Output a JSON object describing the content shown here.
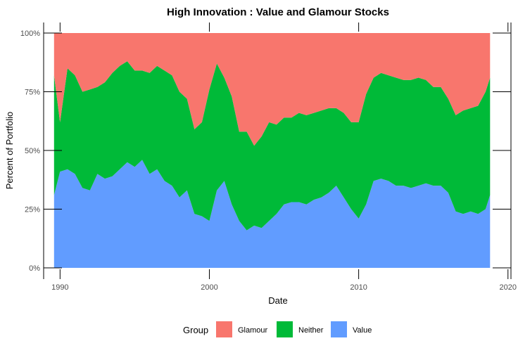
{
  "chart_data": {
    "type": "area",
    "stacking": "percent",
    "title": "High Innovation : Value and Glamour Stocks",
    "xlabel": "Date",
    "ylabel": "Percent of Portfolio",
    "xlim": [
      1988.9,
      2020.2
    ],
    "ylim": [
      0,
      100
    ],
    "x_ticks": [
      "1990",
      "2000",
      "2010",
      "2020"
    ],
    "y_ticks": [
      "0%",
      "25%",
      "50%",
      "75%",
      "100%"
    ],
    "legend": {
      "title": "Group",
      "position": "bottom",
      "entries": [
        "Glamour",
        "Neither",
        "Value"
      ]
    },
    "grid": false,
    "colors": {
      "Glamour": "#F8766D",
      "Neither": "#00BA38",
      "Value": "#619CFF"
    },
    "x": [
      1989.6,
      1990.0,
      1990.5,
      1991.0,
      1991.5,
      1992.0,
      1992.5,
      1993.0,
      1993.5,
      1994.0,
      1994.5,
      1995.0,
      1995.5,
      1996.0,
      1996.5,
      1997.0,
      1997.5,
      1998.0,
      1998.5,
      1999.0,
      1999.5,
      2000.0,
      2000.5,
      2001.0,
      2001.5,
      2002.0,
      2002.5,
      2003.0,
      2003.5,
      2004.0,
      2004.5,
      2005.0,
      2005.5,
      2006.0,
      2006.5,
      2007.0,
      2007.5,
      2008.0,
      2008.5,
      2009.0,
      2009.5,
      2010.0,
      2010.5,
      2011.0,
      2011.5,
      2012.0,
      2012.5,
      2013.0,
      2013.5,
      2014.0,
      2014.5,
      2015.0,
      2015.5,
      2016.0,
      2016.5,
      2017.0,
      2017.5,
      2018.0,
      2018.5,
      2018.8
    ],
    "series": [
      {
        "name": "Value",
        "values": [
          31,
          41,
          42,
          40,
          34,
          33,
          40,
          38,
          39,
          42,
          45,
          43,
          46,
          40,
          42,
          37,
          35,
          30,
          33,
          23,
          22,
          20,
          33,
          37,
          27,
          20,
          16,
          18,
          17,
          20,
          23,
          27,
          28,
          28,
          27,
          29,
          30,
          32,
          35,
          30,
          25,
          21,
          27,
          37,
          38,
          37,
          35,
          35,
          34,
          35,
          36,
          35,
          35,
          32,
          24,
          23,
          24,
          23,
          25,
          31
        ]
      },
      {
        "name": "Neither",
        "values": [
          51,
          21,
          43,
          42,
          41,
          43,
          37,
          41,
          44,
          44,
          43,
          41,
          38,
          43,
          44,
          47,
          47,
          45,
          39,
          36,
          40,
          56,
          54,
          44,
          46,
          38,
          42,
          34,
          39,
          42,
          38,
          37,
          36,
          38,
          38,
          37,
          37,
          36,
          33,
          36,
          37,
          41,
          47,
          44,
          45,
          45,
          46,
          45,
          46,
          46,
          44,
          42,
          42,
          40,
          41,
          44,
          44,
          46,
          50,
          50
        ]
      },
      {
        "name": "Glamour",
        "values": [
          18,
          38,
          15,
          18,
          25,
          24,
          23,
          21,
          17,
          14,
          12,
          16,
          16,
          17,
          14,
          16,
          18,
          25,
          28,
          41,
          38,
          24,
          13,
          19,
          27,
          42,
          42,
          48,
          44,
          38,
          39,
          36,
          36,
          34,
          35,
          34,
          33,
          32,
          32,
          34,
          38,
          38,
          26,
          19,
          17,
          18,
          19,
          20,
          20,
          19,
          20,
          23,
          23,
          28,
          35,
          33,
          32,
          31,
          25,
          19
        ]
      }
    ]
  }
}
